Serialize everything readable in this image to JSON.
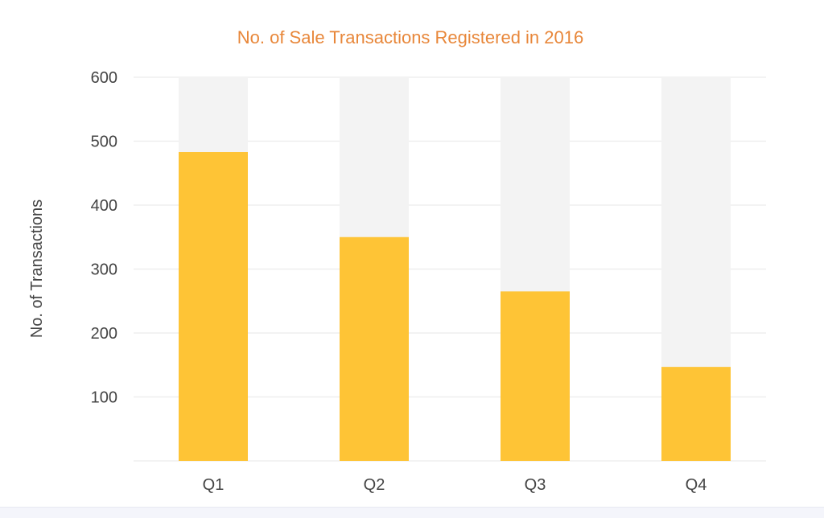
{
  "chart_data": {
    "type": "bar",
    "title": "No. of Sale Transactions Registered in 2016",
    "xlabel": "",
    "ylabel": "No. of Transactions",
    "categories": [
      "Q1",
      "Q2",
      "Q3",
      "Q4"
    ],
    "values": [
      483,
      350,
      265,
      147
    ],
    "ylim": [
      0,
      600
    ],
    "yticks": [
      100,
      200,
      300,
      400,
      500,
      600
    ],
    "ytick_labels": [
      "100",
      "200",
      "300",
      "400",
      "500",
      "600"
    ],
    "max_track_value": 600,
    "grid": true,
    "legend": "none",
    "colors": {
      "title": "#e8873a",
      "bar": "#fec436",
      "track": "#f3f3f3",
      "grid": "#ececec",
      "axis_text": "#444444"
    }
  }
}
